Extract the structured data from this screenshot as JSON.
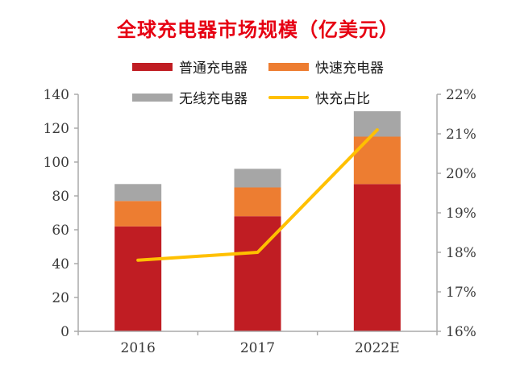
{
  "title": "全球充电器市场规模（亿美元）",
  "colors": {
    "title": "#e60012",
    "ordinary": "#c01d23",
    "fast": "#ed7d31",
    "wireless": "#a6a6a6",
    "ratio_line": "#ffc000",
    "axis": "#aaaaaa",
    "tick_text": "#3a3a3a"
  },
  "legend": [
    {
      "label": "普通充电器",
      "type": "bar",
      "color_key": "ordinary"
    },
    {
      "label": "快速充电器",
      "type": "bar",
      "color_key": "fast"
    },
    {
      "label": "无线充电器",
      "type": "bar",
      "color_key": "wireless"
    },
    {
      "label": "快充占比",
      "type": "line",
      "color_key": "ratio_line"
    }
  ],
  "chart_data": {
    "type": "bar",
    "subtype": "stacked-bar-with-line",
    "title": "全球充电器市场规模（亿美元）",
    "categories": [
      "2016",
      "2017",
      "2022E"
    ],
    "series": [
      {
        "name": "普通充电器",
        "type": "bar",
        "axis": "left",
        "color_key": "ordinary",
        "values": [
          62,
          68,
          87
        ]
      },
      {
        "name": "快速充电器",
        "type": "bar",
        "axis": "left",
        "color_key": "fast",
        "values": [
          15,
          17,
          28
        ]
      },
      {
        "name": "无线充电器",
        "type": "bar",
        "axis": "left",
        "color_key": "wireless",
        "values": [
          10,
          11,
          15
        ]
      },
      {
        "name": "快充占比",
        "type": "line",
        "axis": "right",
        "color_key": "ratio_line",
        "values": [
          17.8,
          18.0,
          21.1
        ]
      }
    ],
    "stacked_totals": [
      87,
      96,
      130
    ],
    "left_axis": {
      "min": 0,
      "max": 140,
      "step": 20,
      "ticks": [
        "0",
        "20",
        "40",
        "60",
        "80",
        "100",
        "120",
        "140"
      ]
    },
    "right_axis": {
      "min": 16,
      "max": 22,
      "step": 1,
      "ticks": [
        "16%",
        "17%",
        "18%",
        "19%",
        "20%",
        "21%",
        "22%"
      ]
    },
    "grid": false,
    "legend_position": "top"
  }
}
